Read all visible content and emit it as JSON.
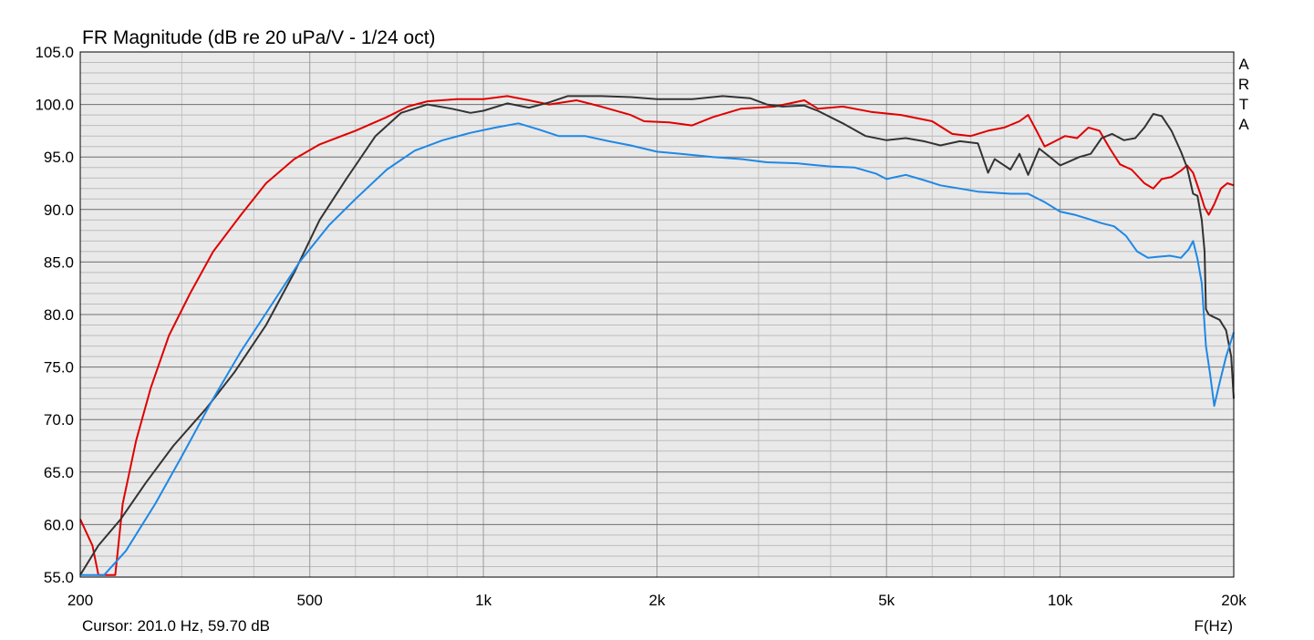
{
  "chart_data": {
    "type": "line",
    "title": "FR Magnitude (dB re 20 uPa/V - 1/24 oct)",
    "xlabel": "F(Hz)",
    "ylabel": "",
    "x_scale": "log",
    "xlim": [
      200,
      20000
    ],
    "ylim": [
      55,
      105
    ],
    "grid": true,
    "y_ticks": [
      "105.0",
      "100.0",
      "95.0",
      "90.0",
      "85.0",
      "80.0",
      "75.0",
      "70.0",
      "65.0",
      "60.0",
      "55.0"
    ],
    "x_ticks": [
      {
        "value": 200,
        "label": "200"
      },
      {
        "value": 500,
        "label": "500"
      },
      {
        "value": 1000,
        "label": "1k"
      },
      {
        "value": 2000,
        "label": "2k"
      },
      {
        "value": 5000,
        "label": "5k"
      },
      {
        "value": 10000,
        "label": "10k"
      },
      {
        "value": 20000,
        "label": "20k"
      }
    ],
    "cursor_readout": "Cursor: 201.0 Hz, 59.70 dB",
    "brand": [
      "A",
      "R",
      "T",
      "A"
    ],
    "series": [
      {
        "color": "#e00000",
        "points": [
          [
            200,
            60.5
          ],
          [
            210,
            58
          ],
          [
            215,
            55.2
          ],
          [
            225,
            55.2
          ],
          [
            230,
            55.2
          ],
          [
            237,
            62
          ],
          [
            250,
            68
          ],
          [
            265,
            73
          ],
          [
            285,
            78
          ],
          [
            310,
            82
          ],
          [
            340,
            86
          ],
          [
            380,
            89.5
          ],
          [
            420,
            92.5
          ],
          [
            470,
            94.8
          ],
          [
            520,
            96.2
          ],
          [
            600,
            97.5
          ],
          [
            680,
            98.8
          ],
          [
            740,
            99.8
          ],
          [
            800,
            100.3
          ],
          [
            900,
            100.5
          ],
          [
            1000,
            100.5
          ],
          [
            1100,
            100.8
          ],
          [
            1200,
            100.4
          ],
          [
            1300,
            100
          ],
          [
            1450,
            100.4
          ],
          [
            1600,
            99.8
          ],
          [
            1800,
            99
          ],
          [
            1900,
            98.4
          ],
          [
            2100,
            98.3
          ],
          [
            2300,
            98
          ],
          [
            2500,
            98.8
          ],
          [
            2800,
            99.6
          ],
          [
            3200,
            99.8
          ],
          [
            3600,
            100.4
          ],
          [
            3800,
            99.6
          ],
          [
            4200,
            99.8
          ],
          [
            4700,
            99.3
          ],
          [
            5300,
            99
          ],
          [
            6000,
            98.4
          ],
          [
            6500,
            97.2
          ],
          [
            7000,
            97
          ],
          [
            7500,
            97.5
          ],
          [
            8000,
            97.8
          ],
          [
            8500,
            98.4
          ],
          [
            8800,
            99
          ],
          [
            9100,
            97.5
          ],
          [
            9400,
            96
          ],
          [
            9800,
            96.5
          ],
          [
            10200,
            97
          ],
          [
            10700,
            96.8
          ],
          [
            11200,
            97.8
          ],
          [
            11700,
            97.5
          ],
          [
            12200,
            95.8
          ],
          [
            12700,
            94.3
          ],
          [
            13300,
            93.8
          ],
          [
            14000,
            92.5
          ],
          [
            14500,
            92
          ],
          [
            15000,
            92.9
          ],
          [
            15600,
            93.1
          ],
          [
            16200,
            93.7
          ],
          [
            16600,
            94.2
          ],
          [
            17000,
            93.5
          ],
          [
            17500,
            91.5
          ],
          [
            17800,
            90.2
          ],
          [
            18100,
            89.5
          ],
          [
            18500,
            90.5
          ],
          [
            19000,
            92
          ],
          [
            19500,
            92.5
          ],
          [
            20000,
            92.3
          ]
        ]
      },
      {
        "color": "#333333",
        "points": [
          [
            200,
            55.2
          ],
          [
            215,
            58
          ],
          [
            235,
            60.5
          ],
          [
            260,
            64
          ],
          [
            290,
            67.5
          ],
          [
            330,
            71
          ],
          [
            370,
            74.5
          ],
          [
            420,
            79
          ],
          [
            470,
            84
          ],
          [
            520,
            89
          ],
          [
            580,
            93
          ],
          [
            650,
            97
          ],
          [
            720,
            99.2
          ],
          [
            800,
            100
          ],
          [
            880,
            99.6
          ],
          [
            950,
            99.2
          ],
          [
            1000,
            99.4
          ],
          [
            1100,
            100.1
          ],
          [
            1200,
            99.7
          ],
          [
            1300,
            100.2
          ],
          [
            1400,
            100.8
          ],
          [
            1600,
            100.8
          ],
          [
            1800,
            100.7
          ],
          [
            2000,
            100.5
          ],
          [
            2300,
            100.5
          ],
          [
            2600,
            100.8
          ],
          [
            2900,
            100.6
          ],
          [
            3100,
            100
          ],
          [
            3300,
            99.8
          ],
          [
            3600,
            99.9
          ],
          [
            3800,
            99.4
          ],
          [
            4200,
            98.2
          ],
          [
            4600,
            97
          ],
          [
            5000,
            96.6
          ],
          [
            5400,
            96.8
          ],
          [
            5800,
            96.5
          ],
          [
            6200,
            96.1
          ],
          [
            6700,
            96.5
          ],
          [
            7200,
            96.3
          ],
          [
            7500,
            93.5
          ],
          [
            7700,
            94.8
          ],
          [
            8000,
            94.2
          ],
          [
            8200,
            93.8
          ],
          [
            8500,
            95.3
          ],
          [
            8800,
            93.3
          ],
          [
            9200,
            95.8
          ],
          [
            9600,
            95
          ],
          [
            10000,
            94.2
          ],
          [
            10400,
            94.6
          ],
          [
            10800,
            95
          ],
          [
            11300,
            95.3
          ],
          [
            11800,
            96.8
          ],
          [
            12300,
            97.2
          ],
          [
            12900,
            96.6
          ],
          [
            13500,
            96.8
          ],
          [
            14000,
            97.8
          ],
          [
            14500,
            99.1
          ],
          [
            15000,
            98.9
          ],
          [
            15600,
            97.5
          ],
          [
            16200,
            95.5
          ],
          [
            16600,
            94
          ],
          [
            17000,
            91.5
          ],
          [
            17300,
            91.3
          ],
          [
            17600,
            89
          ],
          [
            17800,
            86
          ],
          [
            17900,
            80.5
          ],
          [
            18100,
            80
          ],
          [
            18400,
            79.8
          ],
          [
            18900,
            79.5
          ],
          [
            19400,
            78.5
          ],
          [
            19800,
            76
          ],
          [
            20000,
            72
          ]
        ]
      },
      {
        "color": "#1e88e5",
        "points": [
          [
            200,
            55.2
          ],
          [
            220,
            55.2
          ],
          [
            240,
            57.5
          ],
          [
            270,
            62
          ],
          [
            300,
            66.5
          ],
          [
            340,
            72
          ],
          [
            380,
            76.5
          ],
          [
            430,
            81
          ],
          [
            480,
            85
          ],
          [
            540,
            88.5
          ],
          [
            600,
            91
          ],
          [
            680,
            93.8
          ],
          [
            760,
            95.6
          ],
          [
            850,
            96.6
          ],
          [
            950,
            97.3
          ],
          [
            1050,
            97.8
          ],
          [
            1150,
            98.2
          ],
          [
            1250,
            97.6
          ],
          [
            1350,
            97
          ],
          [
            1500,
            97
          ],
          [
            1650,
            96.5
          ],
          [
            1800,
            96.1
          ],
          [
            2000,
            95.5
          ],
          [
            2200,
            95.3
          ],
          [
            2500,
            95
          ],
          [
            2800,
            94.8
          ],
          [
            3100,
            94.5
          ],
          [
            3500,
            94.4
          ],
          [
            3800,
            94.2
          ],
          [
            4000,
            94.1
          ],
          [
            4400,
            94
          ],
          [
            4800,
            93.4
          ],
          [
            5000,
            92.9
          ],
          [
            5400,
            93.3
          ],
          [
            5800,
            92.8
          ],
          [
            6200,
            92.3
          ],
          [
            6700,
            92
          ],
          [
            7200,
            91.7
          ],
          [
            7700,
            91.6
          ],
          [
            8200,
            91.5
          ],
          [
            8800,
            91.5
          ],
          [
            9400,
            90.7
          ],
          [
            10000,
            89.8
          ],
          [
            10600,
            89.5
          ],
          [
            11200,
            89.1
          ],
          [
            11800,
            88.7
          ],
          [
            12400,
            88.4
          ],
          [
            13000,
            87.5
          ],
          [
            13600,
            86
          ],
          [
            14200,
            85.4
          ],
          [
            14800,
            85.5
          ],
          [
            15500,
            85.6
          ],
          [
            16200,
            85.4
          ],
          [
            16700,
            86.2
          ],
          [
            17000,
            87
          ],
          [
            17300,
            85.3
          ],
          [
            17600,
            83
          ],
          [
            17900,
            77
          ],
          [
            18200,
            74.3
          ],
          [
            18500,
            71.3
          ],
          [
            18900,
            73.5
          ],
          [
            19400,
            76
          ],
          [
            20000,
            78.3
          ]
        ]
      }
    ]
  }
}
